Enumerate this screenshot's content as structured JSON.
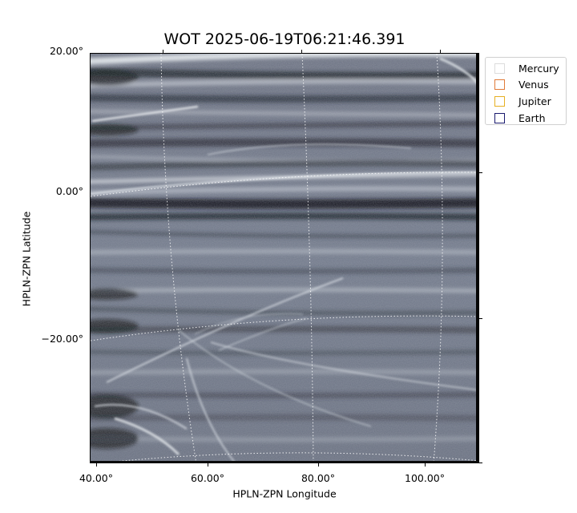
{
  "title": "WOT 2025-06-19T06:21:46.391",
  "axes": {
    "xlabel": "HPLN-ZPN Longitude",
    "ylabel": "HPLN-ZPN Latitude",
    "x_ticks": [
      "40.00°",
      "60.00°",
      "80.00°",
      "100.00°"
    ],
    "y_ticks": [
      "20.00°",
      "0.00°",
      "−20.00°"
    ]
  },
  "legend": [
    {
      "label": "Mercury",
      "color": "#dcdcdc"
    },
    {
      "label": "Venus",
      "color": "#e07b39"
    },
    {
      "label": "Jupiter",
      "color": "#e6b022"
    },
    {
      "label": "Earth",
      "color": "#1a1a6e"
    }
  ],
  "image": {
    "colormap": "slate grayscale",
    "background_color": "#6f7686",
    "grid": "dotted white coordinate grid"
  }
}
